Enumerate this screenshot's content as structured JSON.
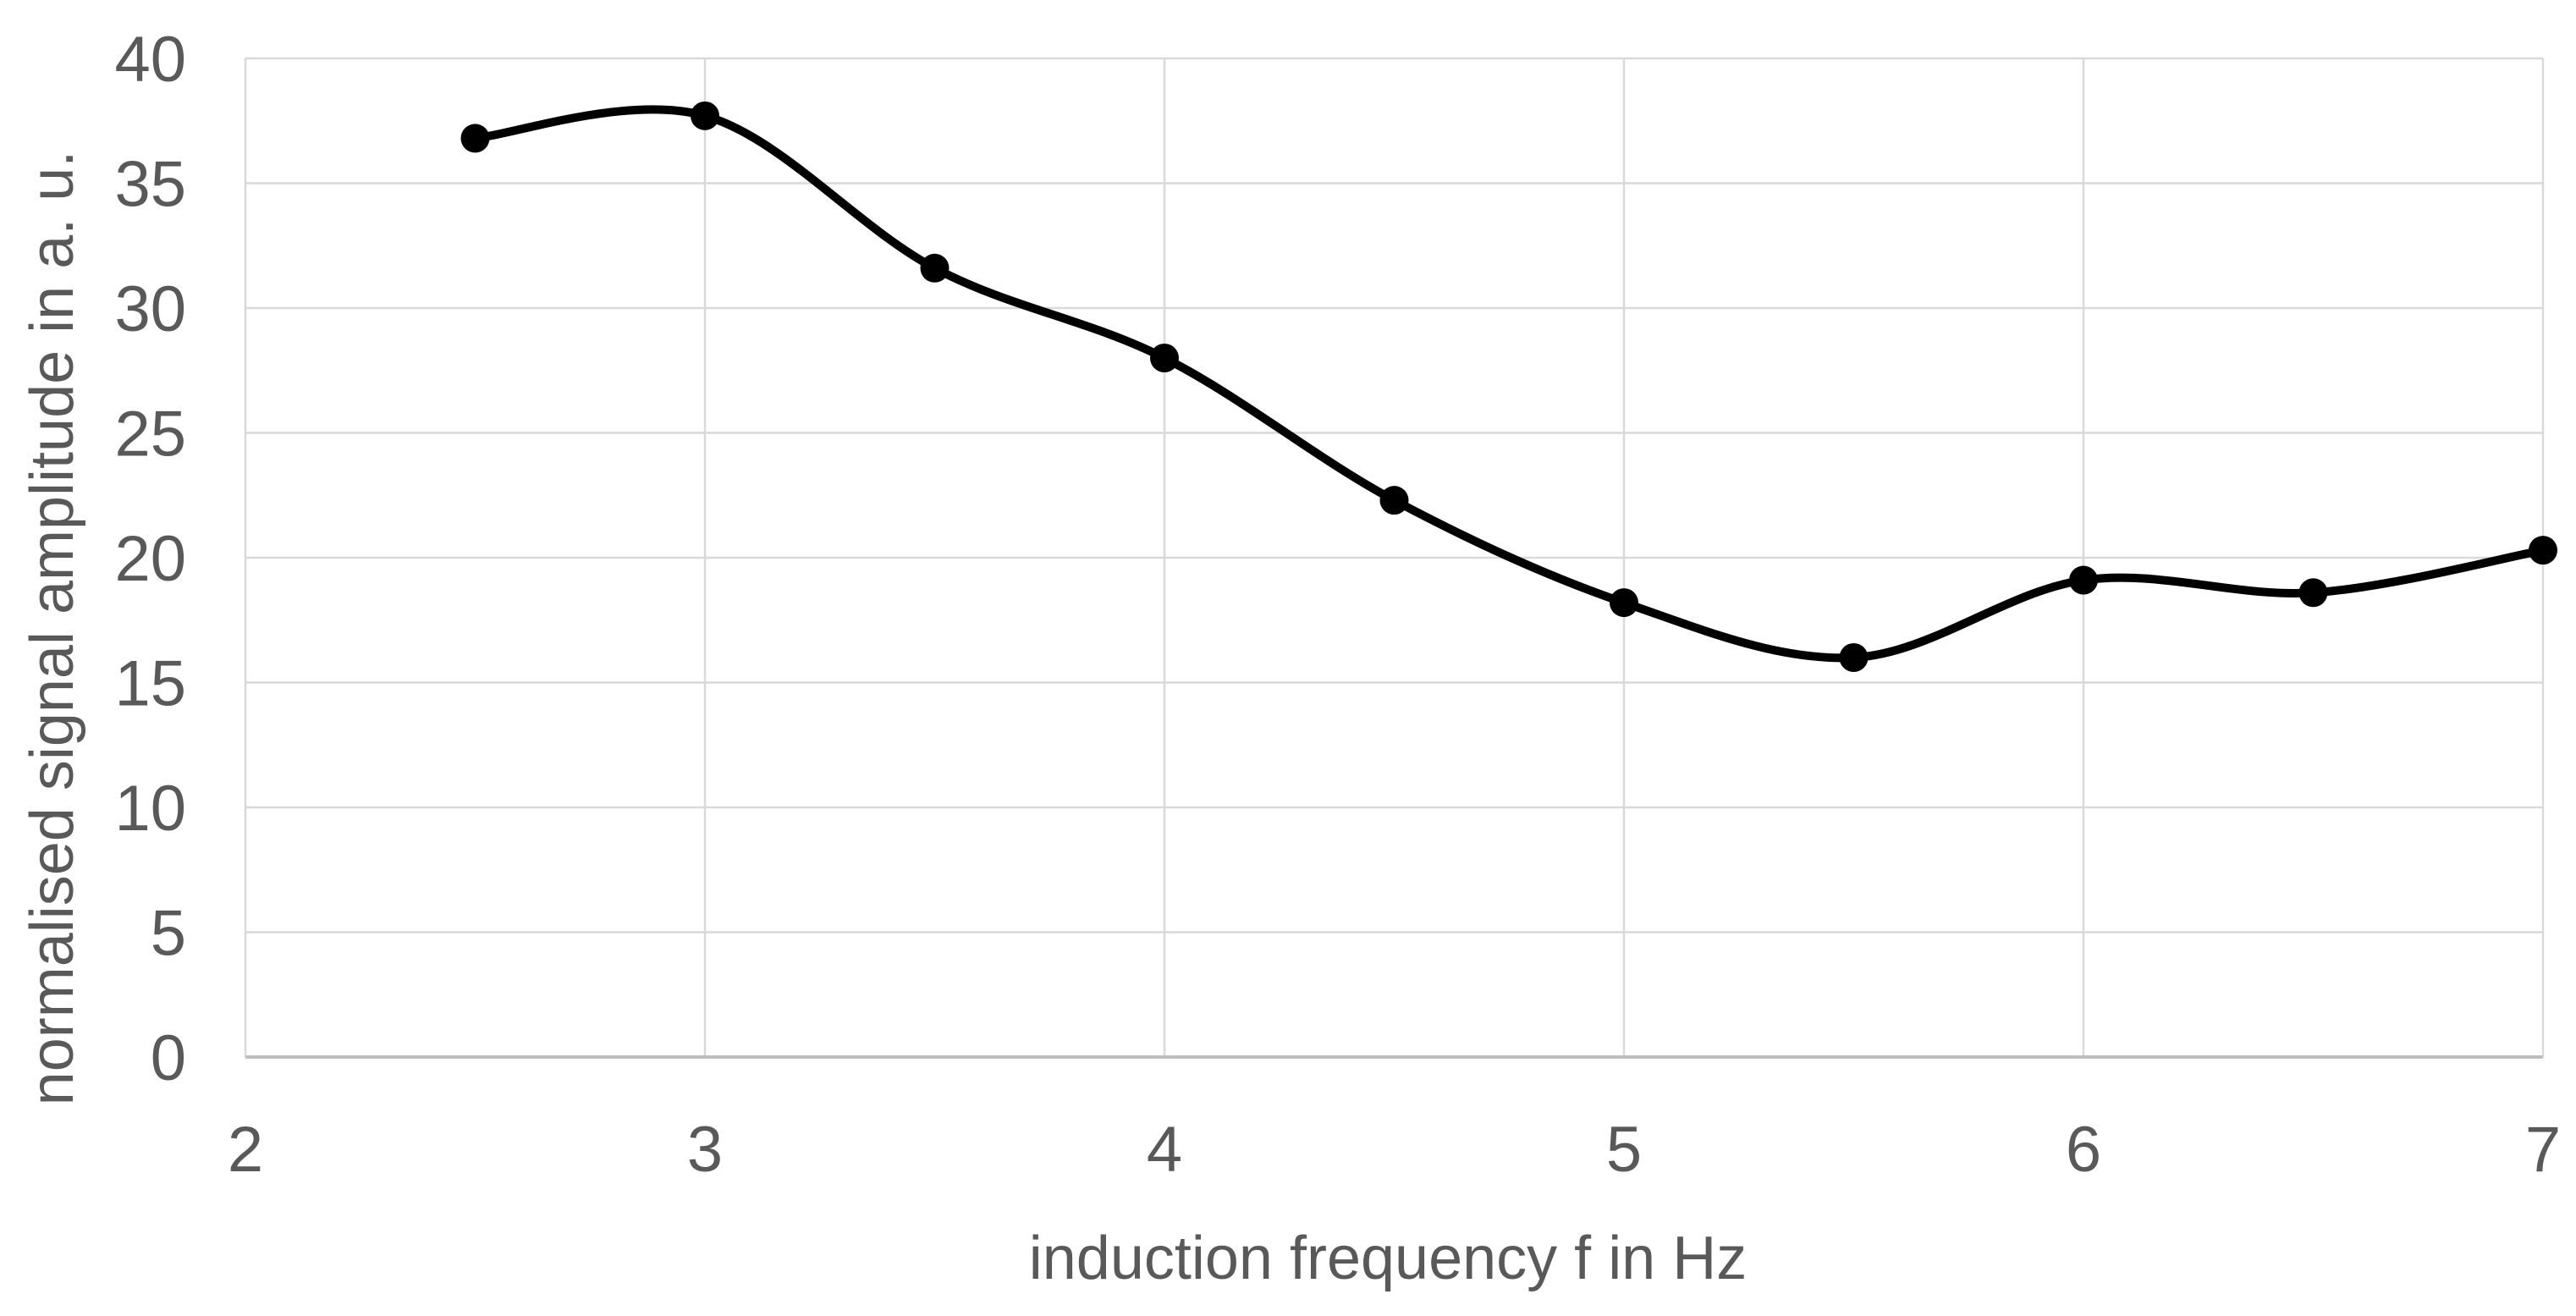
{
  "chart_data": {
    "type": "line",
    "title": "",
    "xlabel": "induction frequency f in Hz",
    "ylabel": "normalised signal amplitude in a. u.",
    "x": [
      2.5,
      3.0,
      3.5,
      4.0,
      4.5,
      5.0,
      5.5,
      6.0,
      6.5,
      7.0
    ],
    "y": [
      36.8,
      37.7,
      31.6,
      28.0,
      22.3,
      18.2,
      16.0,
      19.1,
      18.6,
      20.3
    ],
    "xlim": [
      2,
      7
    ],
    "ylim": [
      0,
      40
    ],
    "x_ticks": [
      "2",
      "3",
      "4",
      "5",
      "6",
      "7"
    ],
    "y_ticks": [
      "0",
      "5",
      "10",
      "15",
      "20",
      "25",
      "30",
      "35",
      "40"
    ],
    "grid": true,
    "smooth": true,
    "legend": "none",
    "line_color": "#000000",
    "marker_color": "#000000",
    "gridline_color": "#d9d9d9",
    "axis_line_color": "#bfbfbf",
    "text_color": "#595959"
  }
}
